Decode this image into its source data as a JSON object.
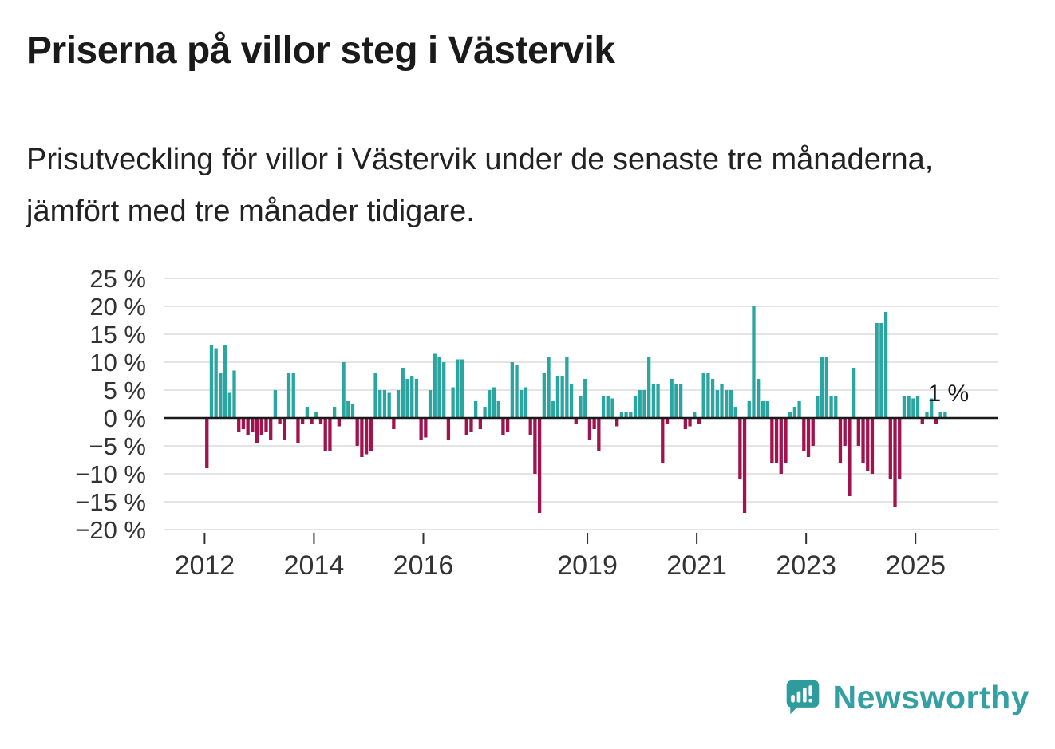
{
  "header": {
    "title": "Priserna på villor steg i Västervik",
    "subtitle": "Prisutveckling för villor i Västervik under de senaste tre månaderna, jämfört med tre månader tidigare."
  },
  "chart_data": {
    "type": "bar",
    "title": "Priserna på villor steg i Västervik",
    "xlabel": "",
    "ylabel": "",
    "ylim": [
      -20,
      25
    ],
    "grid": true,
    "legend": "none",
    "start_year": 2012,
    "frequency_per_year": 12,
    "yticks": [
      {
        "v": 25,
        "label": "25 %"
      },
      {
        "v": 20,
        "label": "20 %"
      },
      {
        "v": 15,
        "label": "15 %"
      },
      {
        "v": 10,
        "label": "10 %"
      },
      {
        "v": 5,
        "label": "5 %"
      },
      {
        "v": 0,
        "label": "0 %"
      },
      {
        "v": -5,
        "label": "−5 %"
      },
      {
        "v": -10,
        "label": "−10 %"
      },
      {
        "v": -15,
        "label": "−15 %"
      },
      {
        "v": -20,
        "label": "−20 %"
      }
    ],
    "xticks": [
      {
        "v": 2012,
        "label": "2012"
      },
      {
        "v": 2014,
        "label": "2014"
      },
      {
        "v": 2016,
        "label": "2016"
      },
      {
        "v": 2019,
        "label": "2019"
      },
      {
        "v": 2021,
        "label": "2021"
      },
      {
        "v": 2023,
        "label": "2023"
      },
      {
        "v": 2025,
        "label": "2025"
      }
    ],
    "annotation": {
      "text": "1 %",
      "target": "last-bar"
    },
    "colors": {
      "positive": "#2AA5A0",
      "negative": "#A0134E",
      "grid": "#DBDBDB",
      "axis": "#1A1A1A",
      "tick_text": "#333333"
    },
    "values": [
      -9,
      13,
      12.5,
      8,
      13,
      4.5,
      8.5,
      -2.5,
      -2,
      -3,
      -2.5,
      -4.5,
      -3,
      -2.5,
      -4,
      5,
      -1,
      -4,
      8,
      8,
      -4.5,
      -1,
      2,
      -1,
      1,
      -1,
      -6,
      -6,
      2,
      -1.5,
      10,
      3,
      2.5,
      -5,
      -7,
      -6.5,
      -6,
      8,
      5,
      5,
      4.5,
      -2,
      5,
      9,
      7,
      7.5,
      7,
      -4,
      -3.5,
      5,
      11.5,
      11,
      10,
      -4,
      5.5,
      10.5,
      10.5,
      -3,
      -2.5,
      3,
      -2,
      2,
      5,
      5.5,
      3,
      -3,
      -2.5,
      10,
      9.5,
      5,
      5.5,
      -3,
      -10,
      -17,
      8,
      11,
      3,
      7.5,
      7.5,
      11,
      6,
      -1,
      4,
      7,
      -4,
      -2,
      -6,
      4,
      4,
      3.5,
      -1.5,
      1,
      1,
      1,
      4,
      5,
      5,
      11,
      6,
      6,
      -8,
      -1,
      7,
      6,
      6,
      -2,
      -1.5,
      1,
      -1,
      8,
      8,
      7,
      5,
      6,
      5,
      5,
      2,
      -11,
      -17,
      3,
      20,
      7,
      3,
      3,
      -8,
      -8,
      -10,
      -8,
      1,
      2,
      3,
      -6,
      -7,
      -5,
      4,
      11,
      11,
      4,
      4,
      -8,
      -5,
      -14,
      9,
      -5,
      -8,
      -9.5,
      -10,
      17,
      17,
      19,
      -11,
      -16,
      -11,
      4,
      4,
      3.5,
      4,
      -1,
      1,
      3.5,
      -1,
      1,
      1
    ]
  },
  "footer": {
    "brand": "Newsworthy",
    "brand_color": "#35A0A4",
    "logo_color": "#2E9C9C"
  }
}
